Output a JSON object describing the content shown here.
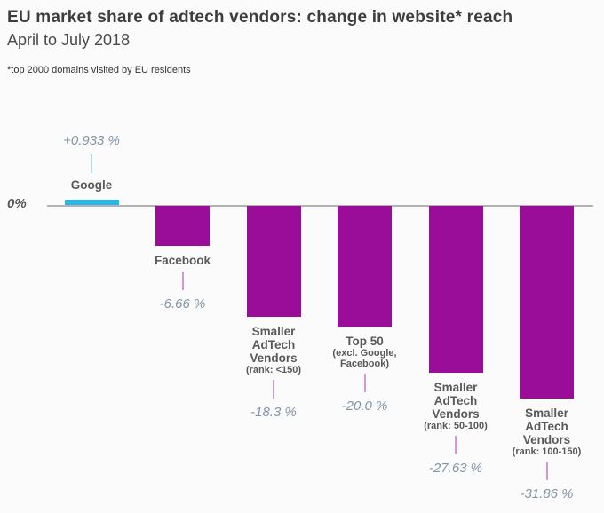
{
  "header": {
    "title": "EU market share of adtech vendors: change in website* reach",
    "subtitle": "April to July 2018",
    "footnote": "*top 2000 domains visited by EU residents"
  },
  "axis": {
    "zero_label": "0%"
  },
  "colors": {
    "positive_bar": "#29b6e8",
    "negative_bar": "#990d99",
    "positive_connector": "#a3ddf4",
    "negative_connector": "#d795d7",
    "value_text": "#8295a7",
    "label_text": "#58595b",
    "axis_line": "#b3b3b3",
    "title_text": "#3d3d3d"
  },
  "chart_data": {
    "type": "bar",
    "title": "EU market share of adtech vendors: change in website* reach",
    "subtitle": "April to July 2018",
    "footnote": "*top 2000 domains visited by EU residents",
    "unit": "%",
    "baseline_label": "0%",
    "ylim": [
      -31.86,
      0.933
    ],
    "grid": false,
    "legend": false,
    "categories": [
      "Google",
      "Facebook",
      "Smaller AdTech Vendors",
      "Top 50",
      "Smaller AdTech Vendors",
      "Smaller AdTech Vendors"
    ],
    "values": [
      0.933,
      -6.66,
      -18.3,
      -20.0,
      -27.63,
      -31.86
    ],
    "bars": [
      {
        "name": "Google",
        "sublabel": "",
        "value": 0.933,
        "value_label": "+0.933 %"
      },
      {
        "name": "Facebook",
        "sublabel": "",
        "value": -6.66,
        "value_label": "-6.66 %"
      },
      {
        "name": "Smaller AdTech Vendors",
        "sublabel": "(rank: <150)",
        "value": -18.3,
        "value_label": "-18.3 %"
      },
      {
        "name": "Top 50",
        "sublabel": "(excl. Google, Facebook)",
        "value": -20.0,
        "value_label": "-20.0 %"
      },
      {
        "name": "Smaller AdTech Vendors",
        "sublabel": "(rank: 50-100)",
        "value": -27.63,
        "value_label": "-27.63 %"
      },
      {
        "name": "Smaller AdTech Vendors",
        "sublabel": "(rank: 100-150)",
        "value": -31.86,
        "value_label": "-31.86 %"
      }
    ]
  }
}
